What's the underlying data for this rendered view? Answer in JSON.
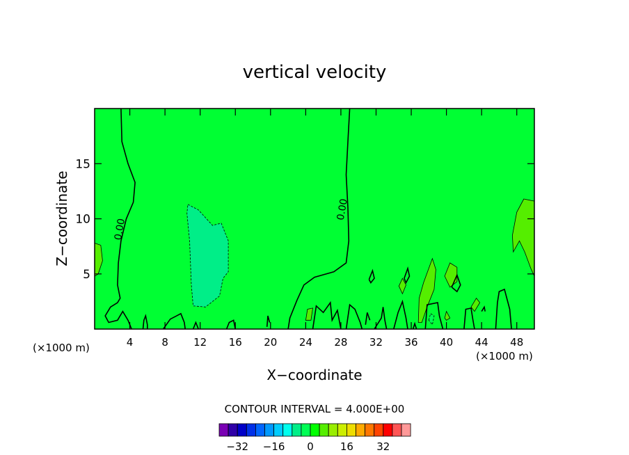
{
  "chart_data": {
    "type": "heatmap",
    "title": "vertical velocity",
    "xlabel": "X−coordinate",
    "ylabel": "Z−coordinate",
    "x_unit_left": "(×1000 m)",
    "x_unit_right": "(×1000 m)",
    "xlim": [
      0,
      50
    ],
    "ylim": [
      0,
      20
    ],
    "xticks": [
      4,
      8,
      12,
      16,
      20,
      24,
      28,
      32,
      36,
      40,
      44,
      48
    ],
    "yticks": [
      5,
      10,
      15
    ],
    "background_value": 0,
    "contour_labels": [
      {
        "text": "0.00",
        "x": 3.2,
        "z": 9
      },
      {
        "text": "0.00",
        "x": 28.5,
        "z": 10.8
      }
    ],
    "zero_contours": [
      [
        [
          3.0,
          20
        ],
        [
          3.1,
          17
        ],
        [
          3.8,
          15
        ],
        [
          4.6,
          13.3
        ],
        [
          4.4,
          11.5
        ],
        [
          3.6,
          10
        ],
        [
          3.0,
          8
        ],
        [
          2.7,
          6
        ],
        [
          2.6,
          4
        ],
        [
          2.9,
          2.8
        ],
        [
          2.6,
          2.4
        ],
        [
          1.8,
          2.0
        ],
        [
          1.2,
          1.2
        ],
        [
          1.6,
          0.6
        ],
        [
          2.6,
          0.8
        ],
        [
          3.2,
          1.6
        ],
        [
          3.8,
          0.8
        ],
        [
          4.2,
          0
        ]
      ],
      [
        [
          29.0,
          20
        ],
        [
          28.8,
          17
        ],
        [
          28.6,
          14
        ],
        [
          28.8,
          11
        ],
        [
          28.9,
          8
        ],
        [
          28.6,
          6
        ],
        [
          27.2,
          5.2
        ],
        [
          25.0,
          4.7
        ],
        [
          23.8,
          4.0
        ],
        [
          23.0,
          2.6
        ],
        [
          22.2,
          1.0
        ],
        [
          22.0,
          0
        ]
      ],
      [
        [
          5.5,
          0
        ],
        [
          5.6,
          0.8
        ],
        [
          5.8,
          1.2
        ],
        [
          6.0,
          0.4
        ],
        [
          6.0,
          0
        ]
      ],
      [
        [
          7.8,
          0
        ],
        [
          8.6,
          0.9
        ],
        [
          9.8,
          1.4
        ],
        [
          10.2,
          0.6
        ],
        [
          10.3,
          0
        ]
      ],
      [
        [
          11.2,
          0
        ],
        [
          11.5,
          0.6
        ],
        [
          11.8,
          0
        ]
      ],
      [
        [
          15.0,
          0
        ],
        [
          15.3,
          0.6
        ],
        [
          15.8,
          0.8
        ],
        [
          16.0,
          0
        ]
      ],
      [
        [
          19.6,
          0.2
        ],
        [
          19.7,
          1.2
        ],
        [
          19.9,
          0.6
        ]
      ],
      [
        [
          24.8,
          0
        ],
        [
          25.2,
          2.1
        ],
        [
          26.0,
          1.5
        ],
        [
          26.8,
          2.4
        ],
        [
          27.0,
          0.8
        ],
        [
          27.6,
          1.7
        ],
        [
          28.0,
          0
        ]
      ],
      [
        [
          28.6,
          0
        ],
        [
          29.0,
          2.2
        ],
        [
          29.6,
          1.8
        ],
        [
          30.2,
          0.6
        ],
        [
          30.4,
          0
        ]
      ],
      [
        [
          30.8,
          0.4
        ],
        [
          31.0,
          1.5
        ],
        [
          31.3,
          0.8
        ]
      ],
      [
        [
          31.8,
          0
        ],
        [
          32.6,
          1.0
        ],
        [
          32.8,
          2.0
        ],
        [
          33.0,
          0.8
        ],
        [
          33.2,
          0
        ]
      ],
      [
        [
          34.0,
          0
        ],
        [
          34.5,
          1.5
        ],
        [
          35.0,
          2.5
        ],
        [
          35.4,
          1.0
        ],
        [
          35.6,
          0
        ]
      ],
      [
        [
          35.2,
          4.6
        ],
        [
          35.6,
          5.5
        ],
        [
          35.8,
          4.8
        ],
        [
          35.4,
          4.2
        ],
        [
          35.2,
          4.6
        ]
      ],
      [
        [
          31.2,
          4.5
        ],
        [
          31.6,
          5.3
        ],
        [
          31.8,
          4.6
        ],
        [
          31.4,
          4.2
        ],
        [
          31.2,
          4.5
        ]
      ],
      [
        [
          36.2,
          0
        ],
        [
          36.4,
          0.5
        ],
        [
          36.6,
          0
        ]
      ],
      [
        [
          37.6,
          0
        ],
        [
          37.8,
          2.2
        ],
        [
          39.0,
          2.4
        ],
        [
          39.2,
          1.2
        ],
        [
          39.6,
          0
        ]
      ],
      [
        [
          40.6,
          3.8
        ],
        [
          41.2,
          4.9
        ],
        [
          41.6,
          4.0
        ],
        [
          41.2,
          3.4
        ],
        [
          40.6,
          3.8
        ]
      ],
      [
        [
          42.0,
          0
        ],
        [
          42.2,
          1.8
        ],
        [
          42.8,
          1.9
        ],
        [
          43.0,
          0.9
        ],
        [
          43.2,
          0
        ]
      ],
      [
        [
          45.6,
          0
        ],
        [
          45.8,
          2.4
        ],
        [
          46.0,
          3.4
        ],
        [
          46.6,
          3.6
        ],
        [
          47.2,
          1.8
        ],
        [
          47.4,
          0
        ]
      ],
      [
        [
          44.0,
          1.6
        ],
        [
          44.3,
          2.0
        ],
        [
          44.4,
          1.6
        ]
      ]
    ],
    "regions": [
      {
        "name": "negative-cell-center",
        "value": -8,
        "color": "#00ee88",
        "dashed": true,
        "points": [
          [
            10.6,
            11.3
          ],
          [
            11.8,
            10.8
          ],
          [
            13.4,
            9.4
          ],
          [
            14.4,
            9.6
          ],
          [
            15.2,
            8.0
          ],
          [
            15.2,
            5.2
          ],
          [
            14.6,
            4.6
          ],
          [
            14.2,
            3.0
          ],
          [
            12.6,
            2.0
          ],
          [
            11.2,
            2.1
          ],
          [
            11.0,
            4.0
          ],
          [
            10.8,
            8.0
          ],
          [
            10.5,
            10.5
          ],
          [
            10.6,
            11.3
          ]
        ]
      },
      {
        "name": "positive-cell-right",
        "value": 4,
        "color": "#55ee00",
        "dashed": false,
        "points": [
          [
            48.8,
            11.8
          ],
          [
            50,
            11.6
          ],
          [
            50,
            4.8
          ],
          [
            49.6,
            5.5
          ],
          [
            48.9,
            7.0
          ],
          [
            48.3,
            8.0
          ],
          [
            47.6,
            7.0
          ],
          [
            47.5,
            8.5
          ],
          [
            48.0,
            10.6
          ],
          [
            48.8,
            11.8
          ]
        ]
      },
      {
        "name": "positive-cell-left",
        "value": 4,
        "color": "#55ee00",
        "dashed": false,
        "points": [
          [
            0,
            7.8
          ],
          [
            0.7,
            7.6
          ],
          [
            0.9,
            6.2
          ],
          [
            0.4,
            5.0
          ],
          [
            0,
            4.8
          ]
        ]
      },
      {
        "name": "positive-cell-36",
        "value": 4,
        "color": "#55ee00",
        "dashed": false,
        "points": [
          [
            36.8,
            0.6
          ],
          [
            36.9,
            2.8
          ],
          [
            37.4,
            4.2
          ],
          [
            38.4,
            6.4
          ],
          [
            38.8,
            5.4
          ],
          [
            38.6,
            3.6
          ],
          [
            37.8,
            2.0
          ],
          [
            37.2,
            0.6
          ],
          [
            36.8,
            0.6
          ]
        ]
      },
      {
        "name": "positive-cell-34",
        "value": 4,
        "color": "#55ee00",
        "dashed": false,
        "points": [
          [
            34.6,
            3.9
          ],
          [
            35.0,
            4.6
          ],
          [
            35.4,
            4.0
          ],
          [
            35.0,
            3.2
          ],
          [
            34.6,
            3.9
          ]
        ]
      },
      {
        "name": "positive-cell-41",
        "value": 4,
        "color": "#55ee00",
        "dashed": false,
        "points": [
          [
            39.8,
            4.8
          ],
          [
            40.4,
            6.0
          ],
          [
            41.2,
            5.6
          ],
          [
            41.2,
            4.3
          ],
          [
            40.4,
            3.8
          ],
          [
            39.8,
            4.8
          ]
        ]
      },
      {
        "name": "positive-cell-43",
        "value": 4,
        "color": "#55ee00",
        "dashed": false,
        "points": [
          [
            42.8,
            2.0
          ],
          [
            43.4,
            2.8
          ],
          [
            43.8,
            2.4
          ],
          [
            43.2,
            1.6
          ],
          [
            42.8,
            2.0
          ]
        ]
      },
      {
        "name": "positive-cell-24",
        "value": 4,
        "color": "#55ee00",
        "dashed": false,
        "points": [
          [
            24.0,
            0.8
          ],
          [
            24.2,
            1.8
          ],
          [
            24.8,
            1.9
          ],
          [
            24.6,
            0.8
          ],
          [
            24.0,
            0.8
          ]
        ]
      },
      {
        "name": "positive-cell-39",
        "value": 4,
        "color": "#55ee00",
        "dashed": false,
        "points": [
          [
            39.8,
            1.0
          ],
          [
            40.0,
            1.6
          ],
          [
            40.4,
            1.0
          ],
          [
            40.0,
            0.8
          ],
          [
            39.8,
            1.0
          ]
        ]
      },
      {
        "name": "negative-cell-38",
        "value": -4,
        "color": "#00ff55",
        "dashed": true,
        "points": [
          [
            38.0,
            0.8
          ],
          [
            38.2,
            1.4
          ],
          [
            38.6,
            1.2
          ],
          [
            38.4,
            0.4
          ],
          [
            38.0,
            0.8
          ]
        ]
      }
    ],
    "colorbar": {
      "title": "CONTOUR INTERVAL = 4.000E+00",
      "tick_labels": [
        "−32",
        "−16",
        "0",
        "16",
        "32"
      ],
      "tick_values": [
        -32,
        -16,
        0,
        16,
        32
      ],
      "levels": [
        -36,
        -32,
        -28,
        -24,
        -20,
        -16,
        -12,
        -8,
        -4,
        0,
        4,
        8,
        12,
        16,
        20,
        24,
        28,
        32,
        36
      ],
      "colors": [
        "#7a00b4",
        "#3000a8",
        "#0000c8",
        "#0030e8",
        "#0066ff",
        "#0099ff",
        "#00ccff",
        "#00ffee",
        "#00ee88",
        "#00ff55",
        "#00ff00",
        "#55ee00",
        "#99ee00",
        "#ccee00",
        "#eedd00",
        "#ffaa00",
        "#ff7700",
        "#ff4400",
        "#ff0000",
        "#ff5555",
        "#ff9999"
      ]
    }
  }
}
